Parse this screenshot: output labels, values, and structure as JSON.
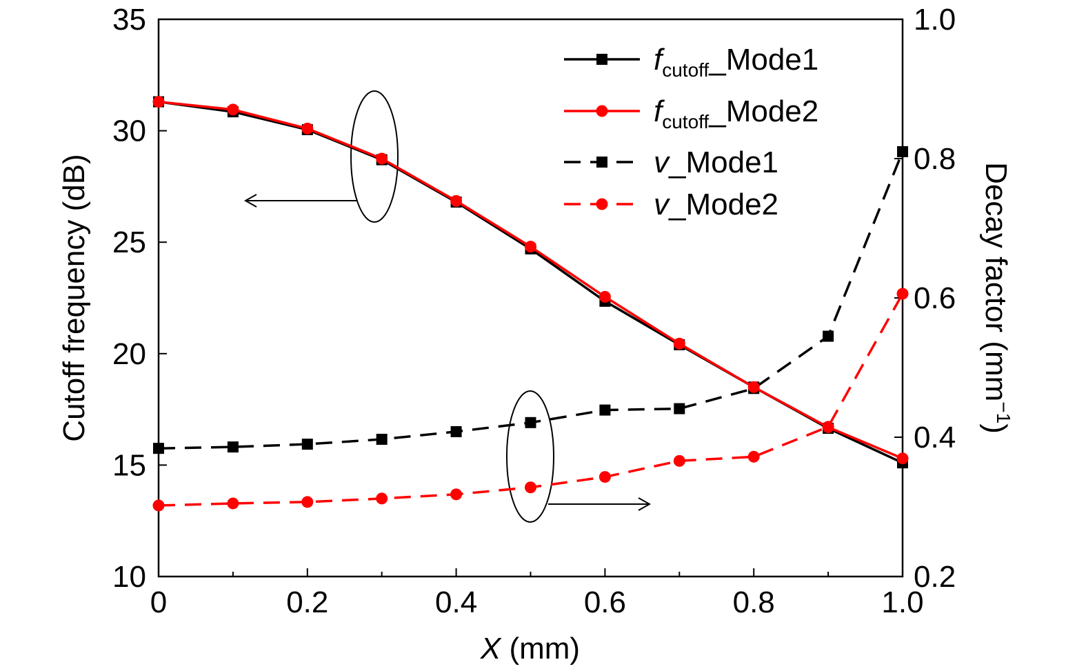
{
  "chart_data": {
    "type": "line",
    "x": [
      0,
      0.1,
      0.2,
      0.3,
      0.4,
      0.5,
      0.6,
      0.7,
      0.8,
      0.9,
      1.0
    ],
    "xlabel_italic": "X",
    "xlabel_rest": " (mm)",
    "ylabel": "Cutoff frequency (dB)",
    "y2label": "Decay factor (mm",
    "y2label_sup": "−1",
    "y2label_close": ")",
    "xlim": [
      0,
      1.0
    ],
    "ylim": [
      10,
      35
    ],
    "y2lim": [
      0.2,
      1.0
    ],
    "x_ticks": [
      "0",
      "0.2",
      "0.4",
      "0.6",
      "0.8",
      "1.0"
    ],
    "y_ticks": [
      "10",
      "15",
      "20",
      "25",
      "30",
      "35"
    ],
    "y2_ticks": [
      "0.2",
      "0.4",
      "0.6",
      "0.8",
      "1.0"
    ],
    "grid": false,
    "legend_position": "top-right",
    "series": [
      {
        "legend_italic": "f",
        "legend_sub": "cutoff",
        "legend_suffix": "_Mode1",
        "axis": "left",
        "color": "#000000",
        "line_style": "solid",
        "marker": "square",
        "values": [
          31.3,
          30.85,
          30.05,
          28.7,
          26.8,
          24.7,
          22.35,
          20.4,
          18.5,
          16.65,
          15.1
        ]
      },
      {
        "legend_italic": "f",
        "legend_sub": "cutoff",
        "legend_suffix": "_Mode2",
        "axis": "left",
        "color": "#ff0000",
        "line_style": "solid",
        "marker": "circle",
        "values": [
          31.3,
          30.95,
          30.1,
          28.75,
          26.85,
          24.8,
          22.55,
          20.45,
          18.5,
          16.7,
          15.3
        ]
      },
      {
        "legend_italic": "v",
        "legend_sub": "",
        "legend_suffix": "_Mode1",
        "axis": "right",
        "color": "#000000",
        "line_style": "dashed",
        "marker": "square",
        "values": [
          0.384,
          0.386,
          0.39,
          0.397,
          0.408,
          0.421,
          0.439,
          0.441,
          0.47,
          0.545,
          0.81
        ]
      },
      {
        "legend_italic": "v",
        "legend_sub": "",
        "legend_suffix": "_Mode2",
        "axis": "right",
        "color": "#ff0000",
        "line_style": "dashed",
        "marker": "circle",
        "values": [
          0.302,
          0.305,
          0.307,
          0.312,
          0.318,
          0.328,
          0.343,
          0.366,
          0.372,
          0.415,
          0.606
        ]
      }
    ]
  }
}
